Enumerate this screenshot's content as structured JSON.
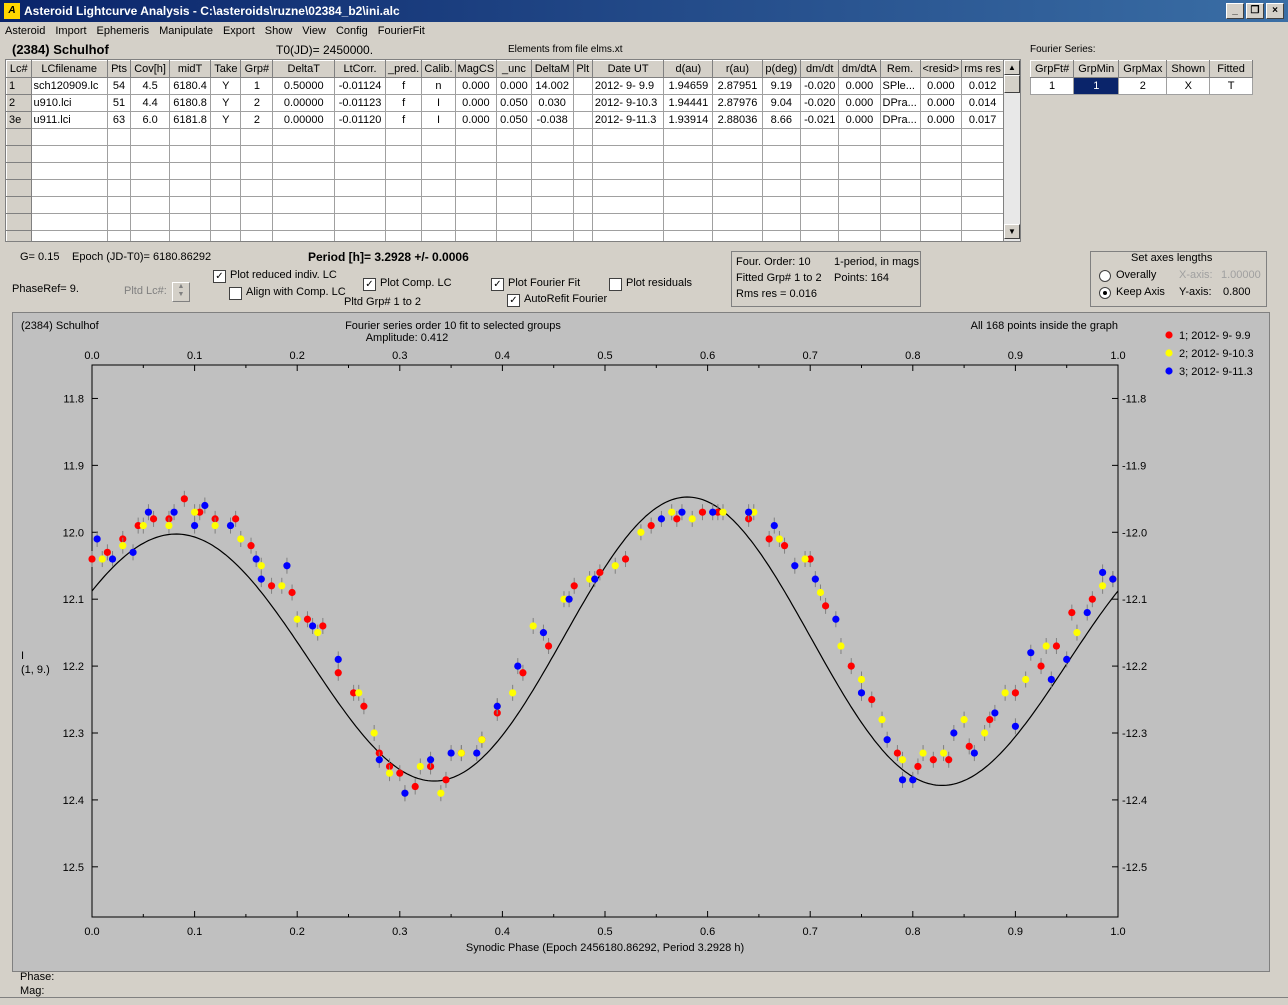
{
  "window": {
    "title": "Asteroid Lightcurve Analysis - C:\\asteroids\\ruzne\\02384_b2\\ini.alc",
    "icon": "app-icon"
  },
  "menu": [
    "Asteroid",
    "Import",
    "Ephemeris",
    "Manipulate",
    "Export",
    "Show",
    "View",
    "Config",
    "FourierFit"
  ],
  "header": {
    "asteroid": "(2384) Schulhof",
    "t0": "T0(JD)= 2450000.",
    "elements": "Elements from file elms.xt",
    "fourier_label": "Fourier Series:"
  },
  "lc_table": {
    "columns": [
      "Lc#",
      "LCfilename",
      "Pts",
      "Cov[h]",
      "midT",
      "Take",
      "Grp#",
      "DeltaT",
      "LtCorr.",
      "_pred.",
      "Calib.",
      "MagCS",
      "_unc",
      "DeltaM",
      "Plt",
      "Date UT",
      "d(au)",
      "r(au)",
      "p(deg)",
      "dm/dt",
      "dm/dtA",
      "Rem.",
      "<resid>",
      "rms res"
    ],
    "rows": [
      [
        "1",
        "sch120909.lc",
        "54",
        "4.5",
        "6180.4",
        "Y",
        "1",
        "0.50000",
        "-0.01124",
        "f",
        "n",
        "0.000",
        "0.000",
        "14.002",
        "",
        "2012- 9- 9.9",
        "1.94659",
        "2.87951",
        "9.19",
        "-0.020",
        "0.000",
        "SPle...",
        "0.000",
        "0.012"
      ],
      [
        "2",
        "u910.lci",
        "51",
        "4.4",
        "6180.8",
        "Y",
        "2",
        "0.00000",
        "-0.01123",
        "f",
        "I",
        "0.000",
        "0.050",
        "0.030",
        "",
        "2012- 9-10.3",
        "1.94441",
        "2.87976",
        "9.04",
        "-0.020",
        "0.000",
        "DPra...",
        "0.000",
        "0.014"
      ],
      [
        "3e",
        "u911.lci",
        "63",
        "6.0",
        "6181.8",
        "Y",
        "2",
        "0.00000",
        "-0.01120",
        "f",
        "I",
        "0.000",
        "0.050",
        "-0.038",
        "",
        "2012- 9-11.3",
        "1.93914",
        "2.88036",
        "8.66",
        "-0.021",
        "0.000",
        "DPra...",
        "0.000",
        "0.017"
      ]
    ]
  },
  "fourier_table": {
    "columns": [
      "GrpFt#",
      "GrpMin",
      "GrpMax",
      "Shown",
      "Fitted"
    ],
    "row": [
      "1",
      "1",
      "2",
      "X",
      "T"
    ]
  },
  "params": {
    "g": "G= 0.15",
    "epoch": "Epoch (JD-T0)= 6180.86292",
    "period": "Period [h]= 3.2928 +/- 0.0006",
    "phaseref": "PhaseRef= 9.",
    "pltd_lc": "Pltd Lc#:",
    "pltd_grp": "Pltd Grp#  1   to   2"
  },
  "options": {
    "plot_reduced": {
      "label": "Plot reduced indiv. LC",
      "checked": true
    },
    "align_comp": {
      "label": "Align with Comp. LC",
      "checked": false
    },
    "plot_comp": {
      "label": "Plot Comp. LC",
      "checked": true
    },
    "plot_fourier": {
      "label": "Plot Fourier Fit",
      "checked": true
    },
    "autorefit": {
      "label": "AutoRefit Fourier",
      "checked": true
    },
    "plot_resid": {
      "label": "Plot residuals",
      "checked": false
    }
  },
  "fit_info": {
    "order": "Four. Order: 10",
    "mode": "1-period, in mags",
    "fitted": "Fitted Grp# 1 to 2",
    "points": "Points: 164",
    "rms": "Rms res     = 0.016"
  },
  "axes_box": {
    "title": "Set axes lengths",
    "overally": "Overally",
    "keep": "Keep Axis",
    "xaxis_label": "X-axis:",
    "xaxis_val": "1.00000",
    "yaxis_label": "Y-axis:",
    "yaxis_val": "0.800"
  },
  "plot": {
    "name": "(2384) Schulhof",
    "title": "Fourier series order 10 fit to selected groups",
    "amplitude": "Amplitude: 0.412",
    "points_note": "All 168 points inside the graph",
    "ylabel": "I",
    "ylabel2": "(1, 9.)",
    "xlabel": "Synodic Phase (Epoch 2456180.86292, Period 3.2928 h)",
    "bg": "#c0c0c0"
  },
  "status": {
    "phase": "Phase:",
    "mag": "Mag:"
  },
  "chart_data": {
    "type": "scatter",
    "xlim": [
      0,
      1
    ],
    "ylim": [
      12.575,
      11.75
    ],
    "x_ticks": [
      "0.0",
      "0.1",
      "0.2",
      "0.3",
      "0.4",
      "0.5",
      "0.6",
      "0.7",
      "0.8",
      "0.9",
      "1.0"
    ],
    "y_ticks": [
      "11.8",
      "11.9",
      "12.0",
      "12.1",
      "12.2",
      "12.3",
      "12.4",
      "12.5"
    ],
    "y_tick_values": [
      11.8,
      11.9,
      12.0,
      12.1,
      12.2,
      12.3,
      12.4,
      12.5
    ],
    "grid": false,
    "legend_position": "right",
    "fourier_curve": {
      "mean": 12.175,
      "terms": [
        [
          0.0,
          0.0
        ],
        [
          0.132,
          -0.08
        ],
        [
          -0.006,
          0.004
        ],
        [
          0.003,
          -0.002
        ]
      ]
    },
    "series": [
      {
        "name": "1; 2012- 9- 9.9",
        "color": "#ff0000",
        "points": [
          [
            0.0,
            12.04
          ],
          [
            0.015,
            12.03
          ],
          [
            0.03,
            12.01
          ],
          [
            0.045,
            11.99
          ],
          [
            0.06,
            11.98
          ],
          [
            0.075,
            11.98
          ],
          [
            0.09,
            11.95
          ],
          [
            0.105,
            11.97
          ],
          [
            0.12,
            11.98
          ],
          [
            0.14,
            11.98
          ],
          [
            0.155,
            12.02
          ],
          [
            0.175,
            12.08
          ],
          [
            0.195,
            12.09
          ],
          [
            0.21,
            12.13
          ],
          [
            0.225,
            12.14
          ],
          [
            0.24,
            12.21
          ],
          [
            0.255,
            12.24
          ],
          [
            0.265,
            12.26
          ],
          [
            0.28,
            12.33
          ],
          [
            0.29,
            12.35
          ],
          [
            0.3,
            12.36
          ],
          [
            0.315,
            12.38
          ],
          [
            0.33,
            12.35
          ],
          [
            0.345,
            12.37
          ],
          [
            0.36,
            12.33
          ],
          [
            0.38,
            12.31
          ],
          [
            0.395,
            12.27
          ],
          [
            0.42,
            12.21
          ],
          [
            0.445,
            12.17
          ],
          [
            0.47,
            12.08
          ],
          [
            0.495,
            12.06
          ],
          [
            0.52,
            12.04
          ],
          [
            0.545,
            11.99
          ],
          [
            0.57,
            11.98
          ],
          [
            0.595,
            11.97
          ],
          [
            0.61,
            11.97
          ],
          [
            0.64,
            11.98
          ],
          [
            0.66,
            12.01
          ],
          [
            0.675,
            12.02
          ],
          [
            0.7,
            12.04
          ],
          [
            0.715,
            12.11
          ],
          [
            0.74,
            12.2
          ],
          [
            0.76,
            12.25
          ],
          [
            0.785,
            12.33
          ],
          [
            0.805,
            12.35
          ],
          [
            0.82,
            12.34
          ],
          [
            0.835,
            12.34
          ],
          [
            0.855,
            12.32
          ],
          [
            0.875,
            12.28
          ],
          [
            0.9,
            12.24
          ],
          [
            0.925,
            12.2
          ],
          [
            0.94,
            12.17
          ],
          [
            0.955,
            12.12
          ],
          [
            0.975,
            12.1
          ],
          [
            0.995,
            12.07
          ]
        ]
      },
      {
        "name": "2; 2012- 9-10.3",
        "color": "#ffff00",
        "points": [
          [
            0.01,
            12.04
          ],
          [
            0.03,
            12.02
          ],
          [
            0.05,
            11.99
          ],
          [
            0.075,
            11.99
          ],
          [
            0.1,
            11.97
          ],
          [
            0.12,
            11.99
          ],
          [
            0.145,
            12.01
          ],
          [
            0.165,
            12.05
          ],
          [
            0.185,
            12.08
          ],
          [
            0.2,
            12.13
          ],
          [
            0.22,
            12.15
          ],
          [
            0.26,
            12.24
          ],
          [
            0.275,
            12.3
          ],
          [
            0.29,
            12.36
          ],
          [
            0.305,
            12.39
          ],
          [
            0.32,
            12.35
          ],
          [
            0.34,
            12.39
          ],
          [
            0.36,
            12.33
          ],
          [
            0.38,
            12.31
          ],
          [
            0.395,
            12.26
          ],
          [
            0.41,
            12.24
          ],
          [
            0.43,
            12.14
          ],
          [
            0.46,
            12.1
          ],
          [
            0.485,
            12.07
          ],
          [
            0.51,
            12.05
          ],
          [
            0.535,
            12.0
          ],
          [
            0.565,
            11.97
          ],
          [
            0.585,
            11.98
          ],
          [
            0.615,
            11.97
          ],
          [
            0.645,
            11.97
          ],
          [
            0.67,
            12.01
          ],
          [
            0.695,
            12.04
          ],
          [
            0.71,
            12.09
          ],
          [
            0.73,
            12.17
          ],
          [
            0.75,
            12.22
          ],
          [
            0.77,
            12.28
          ],
          [
            0.79,
            12.34
          ],
          [
            0.81,
            12.33
          ],
          [
            0.83,
            12.33
          ],
          [
            0.85,
            12.28
          ],
          [
            0.87,
            12.3
          ],
          [
            0.89,
            12.24
          ],
          [
            0.91,
            12.22
          ],
          [
            0.93,
            12.17
          ],
          [
            0.96,
            12.15
          ],
          [
            0.985,
            12.08
          ]
        ]
      },
      {
        "name": "3; 2012- 9-11.3",
        "color": "#0000ff",
        "points": [
          [
            0.005,
            12.01
          ],
          [
            0.02,
            12.04
          ],
          [
            0.04,
            12.03
          ],
          [
            0.055,
            11.97
          ],
          [
            0.08,
            11.97
          ],
          [
            0.1,
            11.99
          ],
          [
            0.11,
            11.96
          ],
          [
            0.135,
            11.99
          ],
          [
            0.16,
            12.04
          ],
          [
            0.165,
            12.07
          ],
          [
            0.19,
            12.05
          ],
          [
            0.215,
            12.14
          ],
          [
            0.24,
            12.19
          ],
          [
            0.28,
            12.34
          ],
          [
            0.305,
            12.39
          ],
          [
            0.33,
            12.34
          ],
          [
            0.35,
            12.33
          ],
          [
            0.375,
            12.33
          ],
          [
            0.395,
            12.26
          ],
          [
            0.415,
            12.2
          ],
          [
            0.44,
            12.15
          ],
          [
            0.465,
            12.1
          ],
          [
            0.49,
            12.07
          ],
          [
            0.555,
            11.98
          ],
          [
            0.575,
            11.97
          ],
          [
            0.605,
            11.97
          ],
          [
            0.64,
            11.97
          ],
          [
            0.665,
            11.99
          ],
          [
            0.685,
            12.05
          ],
          [
            0.705,
            12.07
          ],
          [
            0.725,
            12.13
          ],
          [
            0.75,
            12.24
          ],
          [
            0.775,
            12.31
          ],
          [
            0.79,
            12.37
          ],
          [
            0.8,
            12.37
          ],
          [
            0.84,
            12.3
          ],
          [
            0.86,
            12.33
          ],
          [
            0.88,
            12.27
          ],
          [
            0.9,
            12.29
          ],
          [
            0.915,
            12.18
          ],
          [
            0.935,
            12.22
          ],
          [
            0.95,
            12.19
          ],
          [
            0.97,
            12.12
          ],
          [
            0.985,
            12.06
          ],
          [
            0.995,
            12.07
          ]
        ]
      }
    ]
  }
}
